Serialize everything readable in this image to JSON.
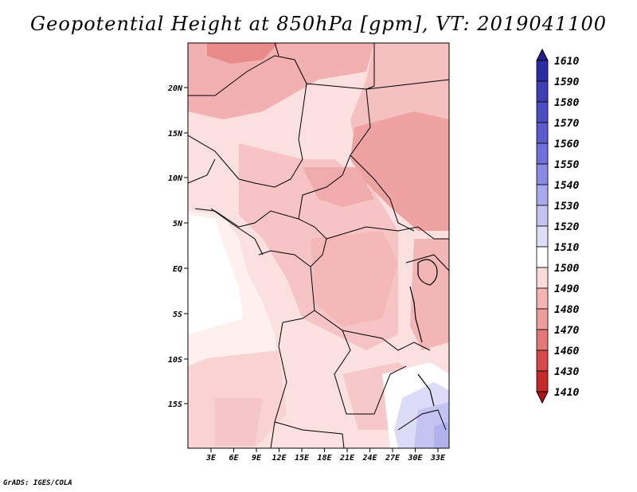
{
  "title": "Geopotential Height at 850hPa [gpm], VT: 2019041100",
  "credit": "GrADS: IGES/COLA",
  "lat_ticks": [
    "20N",
    "15N",
    "10N",
    "5N",
    "EQ",
    "5S",
    "10S",
    "15S"
  ],
  "lon_ticks": [
    "3E",
    "6E",
    "9E",
    "12E",
    "15E",
    "18E",
    "21E",
    "24E",
    "27E",
    "30E",
    "33E"
  ],
  "colorbar": {
    "levels": [
      "1610",
      "1590",
      "1580",
      "1570",
      "1560",
      "1550",
      "1540",
      "1530",
      "1520",
      "1510",
      "1500",
      "1490",
      "1480",
      "1470",
      "1460",
      "1430",
      "1410"
    ],
    "colors": [
      "#1f1f8c",
      "#2c2ca6",
      "#3d3db8",
      "#4c4cc4",
      "#5c5cd0",
      "#7070dc",
      "#8a8ae4",
      "#a8a8ec",
      "#c4c4f2",
      "#dedef8",
      "#ffffff",
      "#fadada",
      "#f4b4b4",
      "#ee9c9c",
      "#e47878",
      "#d84a4a",
      "#c82a2a",
      "#b01414"
    ]
  }
}
